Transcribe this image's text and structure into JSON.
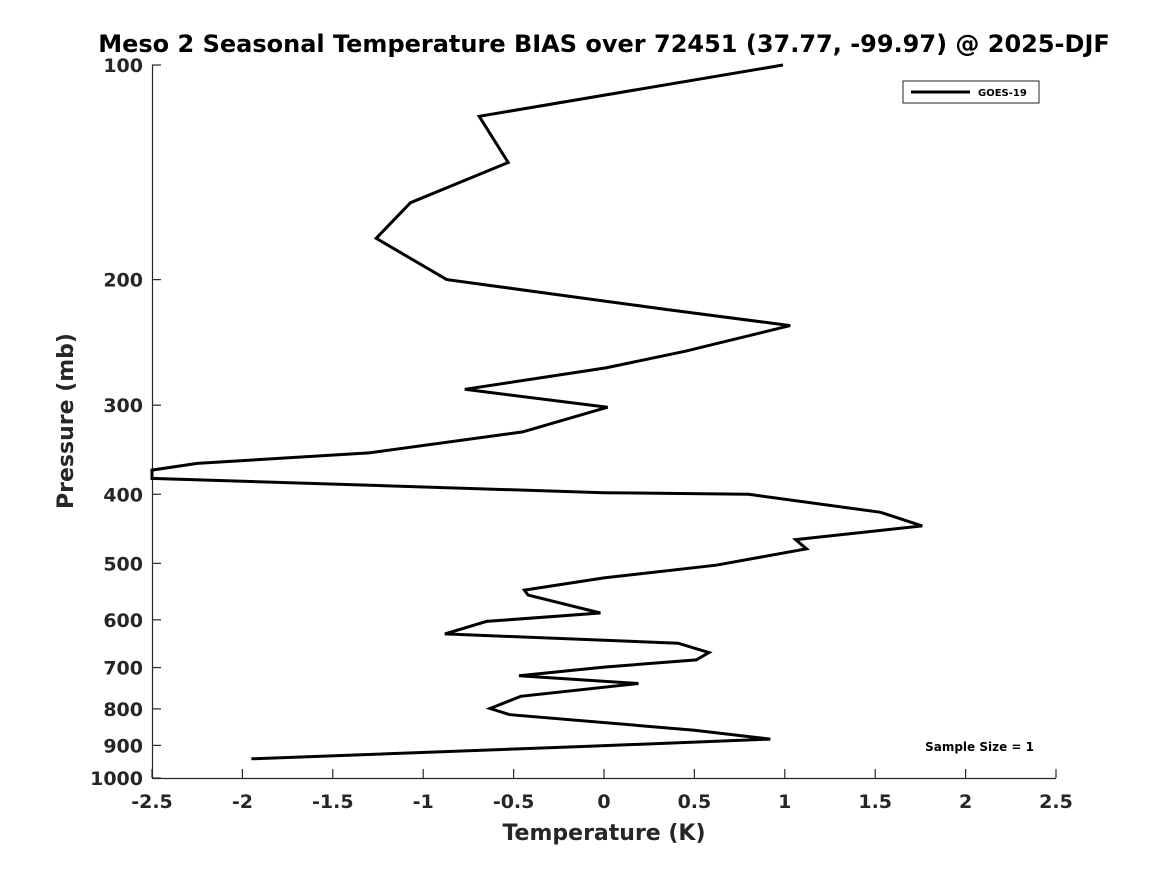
{
  "colors": {
    "series": "#000000",
    "axis": "#262626",
    "background": "#ffffff"
  },
  "chart_data": {
    "type": "line",
    "title": "Meso 2 Seasonal Temperature BIAS over 72451 (37.77, -99.97) @ 2025-DJF",
    "xlabel": "Temperature (K)",
    "ylabel": "Pressure (mb)",
    "xlim": [
      -2.5,
      2.5
    ],
    "ylim": [
      100,
      1000
    ],
    "yscale": "log",
    "yreversed": true,
    "grid": false,
    "xticks": [
      -2.5,
      -2,
      -1.5,
      -1,
      -0.5,
      0,
      0.5,
      1,
      1.5,
      2,
      2.5
    ],
    "xtick_labels": [
      "-2.5",
      "-2",
      "-1.5",
      "-1",
      "-0.5",
      "0",
      "0.5",
      "1",
      "1.5",
      "2",
      "2.5"
    ],
    "yticks": [
      100,
      200,
      300,
      400,
      500,
      600,
      700,
      800,
      900,
      1000
    ],
    "ytick_labels": [
      "100",
      "200",
      "300",
      "400",
      "500",
      "600",
      "700",
      "800",
      "900",
      "1000"
    ],
    "legend": {
      "entries": [
        "GOES-19"
      ],
      "placement": "top-right"
    },
    "annotation": "Sample Size = 1",
    "series": [
      {
        "name": "GOES-19",
        "x": [
          0.99,
          -0.69,
          -0.53,
          -1.07,
          -1.26,
          -0.87,
          0.33,
          1.03,
          0.45,
          0.01,
          -0.77,
          0.02,
          -0.45,
          -1.3,
          -2.25,
          -2.5,
          -2.5,
          0.0,
          0.8,
          1.53,
          1.76,
          1.06,
          1.12,
          0.62,
          0.0,
          -0.44,
          -0.42,
          -0.02,
          -0.65,
          -0.88,
          0.41,
          0.58,
          0.51,
          0.0,
          -0.47,
          0.19,
          -0.46,
          -0.63,
          -0.52,
          0.5,
          0.92,
          -0.1,
          -1.95
        ],
        "y": [
          100,
          118,
          137,
          156,
          175,
          200,
          220,
          232,
          252,
          266,
          285,
          302,
          327,
          350,
          362,
          370,
          380,
          398,
          400,
          424,
          443,
          463,
          477,
          503,
          524,
          545,
          554,
          587,
          603,
          628,
          647,
          667,
          683,
          699,
          719,
          737,
          768,
          799,
          815,
          857,
          882,
          903,
          940
        ]
      }
    ]
  }
}
